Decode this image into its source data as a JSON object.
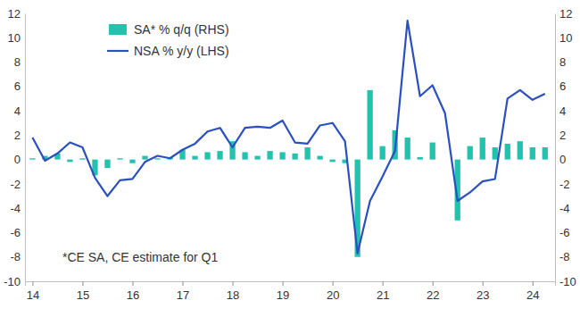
{
  "chart_data": {
    "type": "combo",
    "x": [
      2014,
      2014.25,
      2014.5,
      2014.75,
      2015,
      2015.25,
      2015.5,
      2015.75,
      2016,
      2016.25,
      2016.5,
      2016.75,
      2017,
      2017.25,
      2017.5,
      2017.75,
      2018,
      2018.25,
      2018.5,
      2018.75,
      2019,
      2019.25,
      2019.5,
      2019.75,
      2020,
      2020.25,
      2020.5,
      2020.75,
      2021,
      2021.25,
      2021.5,
      2021.75,
      2022,
      2022.25,
      2022.5,
      2022.75,
      2023,
      2023.25,
      2023.5,
      2023.75,
      2024,
      2024.25
    ],
    "series": [
      {
        "name": "SA* % q/q (RHS)",
        "type": "bar",
        "color": "#22c3ae",
        "axis": "y2",
        "values": [
          0.1,
          0.3,
          0.5,
          -0.2,
          0.1,
          -1.3,
          -0.7,
          0.1,
          -0.3,
          0.3,
          0.1,
          0.2,
          0.8,
          0.3,
          0.6,
          0.7,
          1.5,
          0.6,
          0.3,
          0.7,
          0.6,
          0.5,
          1.0,
          0.3,
          -0.2,
          -0.3,
          -8.0,
          5.7,
          1.1,
          2.4,
          1.8,
          0.2,
          1.4,
          0.0,
          -5.0,
          1.1,
          1.8,
          1.0,
          1.3,
          1.5,
          1.0,
          1.0
        ]
      },
      {
        "name": "NSA % y/y (LHS)",
        "type": "line",
        "color": "#2a4fc0",
        "values": [
          1.8,
          -0.1,
          0.5,
          1.4,
          1.0,
          -1.5,
          -3.0,
          -1.7,
          -1.6,
          -0.2,
          0.3,
          0.1,
          0.8,
          1.3,
          2.3,
          2.6,
          1.0,
          2.6,
          2.7,
          2.6,
          3.2,
          1.4,
          1.3,
          2.8,
          3.0,
          1.5,
          -7.7,
          -3.4,
          -1.4,
          0.7,
          11.4,
          5.2,
          6.1,
          3.8,
          -3.4,
          -2.7,
          -1.8,
          -1.6,
          5.0,
          5.7,
          4.9,
          5.4
        ]
      }
    ],
    "xlim": [
      2013.85,
      2024.45
    ],
    "xticks": [
      {
        "value": 2014,
        "label": "14"
      },
      {
        "value": 2015,
        "label": "15"
      },
      {
        "value": 2016,
        "label": "16"
      },
      {
        "value": 2017,
        "label": "17"
      },
      {
        "value": 2018,
        "label": "18"
      },
      {
        "value": 2019,
        "label": "19"
      },
      {
        "value": 2020,
        "label": "20"
      },
      {
        "value": 2021,
        "label": "21"
      },
      {
        "value": 2022,
        "label": "22"
      },
      {
        "value": 2023,
        "label": "23"
      },
      {
        "value": 2024,
        "label": "24"
      }
    ],
    "ylim": [
      -10,
      12
    ],
    "yticks": [
      -10,
      -8,
      -6,
      -4,
      -2,
      0,
      2,
      4,
      6,
      8,
      10,
      12
    ],
    "y2lim": [
      -10,
      12
    ],
    "y2ticks": [
      -10,
      -8,
      -6,
      -4,
      -2,
      0,
      2,
      4,
      6,
      8,
      10,
      12
    ],
    "annotation": "*CE SA, CE estimate for Q1",
    "legend": "top-left",
    "grid": false
  }
}
